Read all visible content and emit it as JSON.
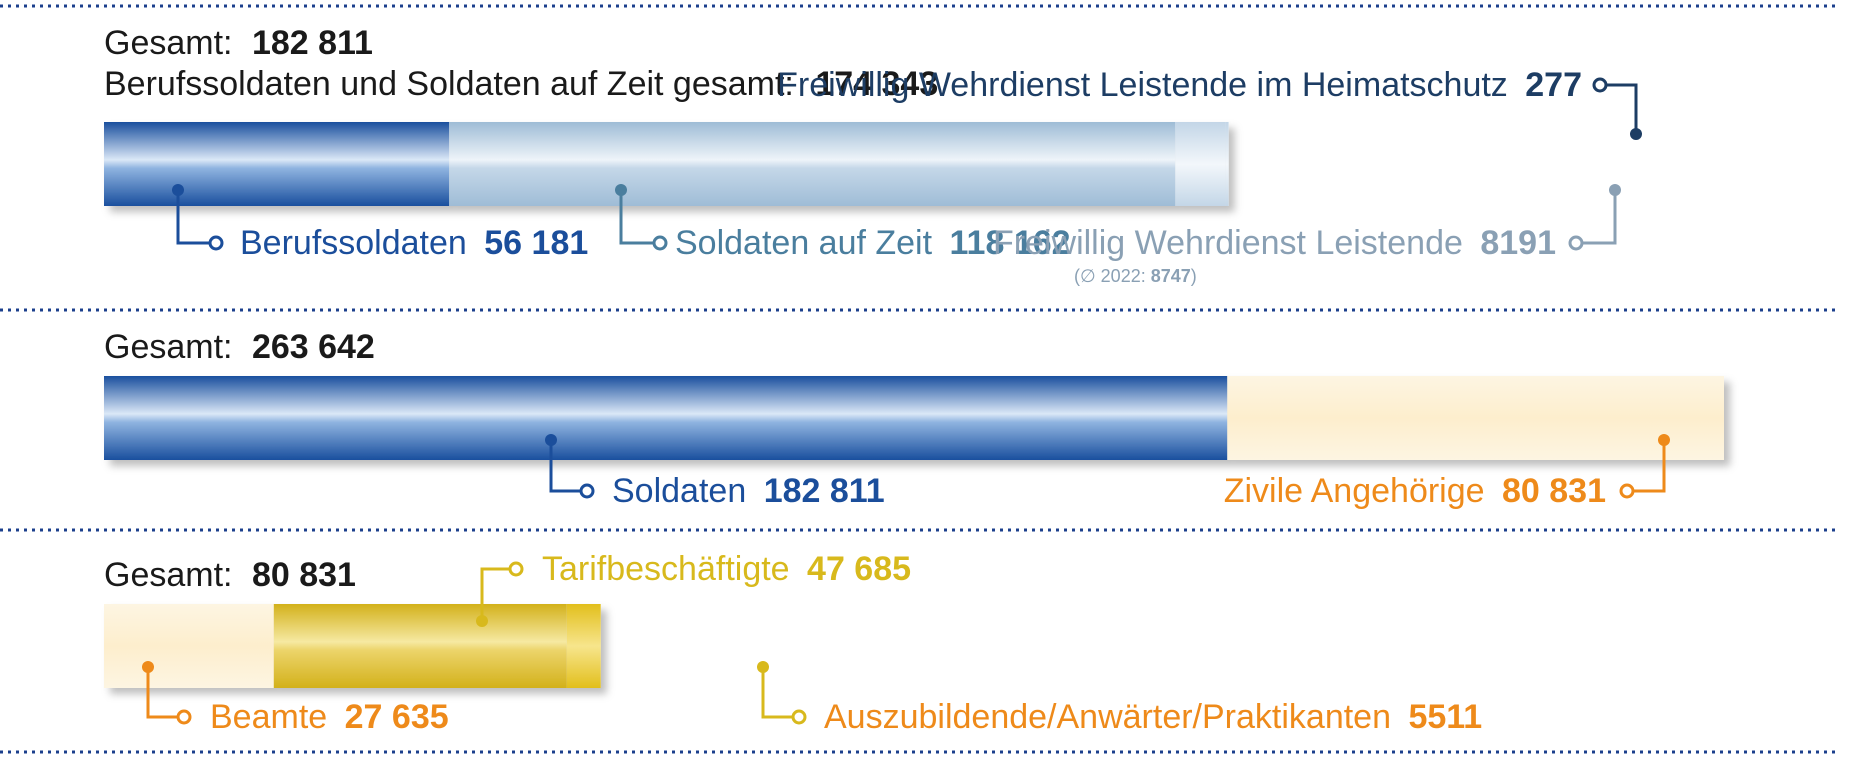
{
  "colors": {
    "dark_blue": "#1b4e9b",
    "light_blue": "#a9c4dc",
    "steel_blue": "#4a7e9e",
    "grey_blue": "#8aa0b4",
    "navy": "#1d3d64",
    "orange": "#ee8a1a",
    "cream": "#fdf1d6",
    "gold": "#d8b91c",
    "dotted": "#1b3f8c"
  },
  "chart_data": [
    {
      "type": "bar",
      "orientation": "horizontal-stacked",
      "totals": [
        {
          "label": "Gesamt:",
          "value": "182 811"
        },
        {
          "label": "Berufssoldaten und Soldaten auf Zeit gesamt:",
          "value": "174 343"
        }
      ],
      "series": [
        {
          "name": "Berufssoldaten",
          "value": 56181,
          "value_text": "56 181",
          "color": "#1b4e9b"
        },
        {
          "name": "Soldaten auf Zeit",
          "value": 118162,
          "value_text": "118 162",
          "color": "#a9c4dc"
        },
        {
          "name": "Freiwillig Wehrdienst Leistende",
          "value": 8191,
          "value_text": "8191",
          "color": "#c6d7e6"
        },
        {
          "name": "Freiwillig Wehrdienst Leistende im Heimatschutz",
          "value": 277,
          "value_text": "277",
          "color": "#bcd2e4"
        }
      ],
      "note": {
        "prefix": "(∅ 2022: ",
        "value": "8747",
        "suffix": ")"
      }
    },
    {
      "type": "bar",
      "orientation": "horizontal-stacked",
      "totals": [
        {
          "label": "Gesamt:",
          "value": "263 642"
        }
      ],
      "series": [
        {
          "name": "Soldaten",
          "value": 182811,
          "value_text": "182 811",
          "color": "#1b4e9b"
        },
        {
          "name": "Zivile Angehörige",
          "value": 80831,
          "value_text": "80 831",
          "color": "#fdf1d6"
        }
      ]
    },
    {
      "type": "bar",
      "orientation": "horizontal-stacked",
      "totals": [
        {
          "label": "Gesamt:",
          "value": "80 831"
        }
      ],
      "series": [
        {
          "name": "Beamte",
          "value": 27635,
          "value_text": "27 635",
          "color": "#fdf1d6"
        },
        {
          "name": "Tarifbeschäftigte",
          "value": 47685,
          "value_text": "47 685",
          "color": "#d8b91c"
        },
        {
          "name": "Auszubildende/Anwärter/Praktikanten",
          "value": 5511,
          "value_text": "5511",
          "color": "#e6c42a"
        }
      ]
    }
  ]
}
